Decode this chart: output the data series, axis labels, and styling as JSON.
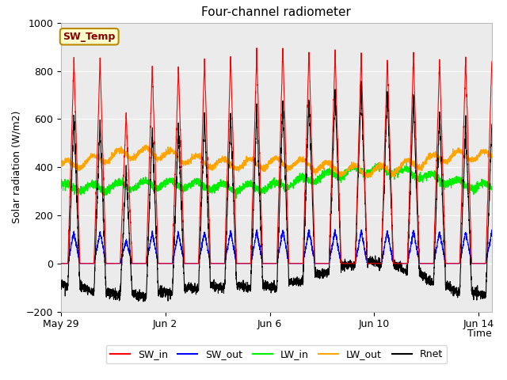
{
  "title": "Four-channel radiometer",
  "xlabel": "Time",
  "ylabel": "Solar radiation (W/m2)",
  "ylim": [
    -200,
    1000
  ],
  "xtick_labels": [
    "May 29",
    "Jun 2",
    "Jun 6",
    "Jun 10",
    "Jun 14"
  ],
  "xtick_positions": [
    0,
    4,
    8,
    12,
    16
  ],
  "annotation_text": "SW_Temp",
  "annotation_bg": "#FFFFCC",
  "annotation_edge": "#BB8800",
  "annotation_text_color": "#880000",
  "colors": {
    "SW_in": "#FF0000",
    "SW_out": "#0000FF",
    "LW_in": "#00EE00",
    "LW_out": "#FFA500",
    "Rnet": "#000000"
  },
  "plot_bg": "#EBEBEB",
  "fig_bg": "#FFFFFF",
  "n_days": 17,
  "dt_hours": 0.1
}
